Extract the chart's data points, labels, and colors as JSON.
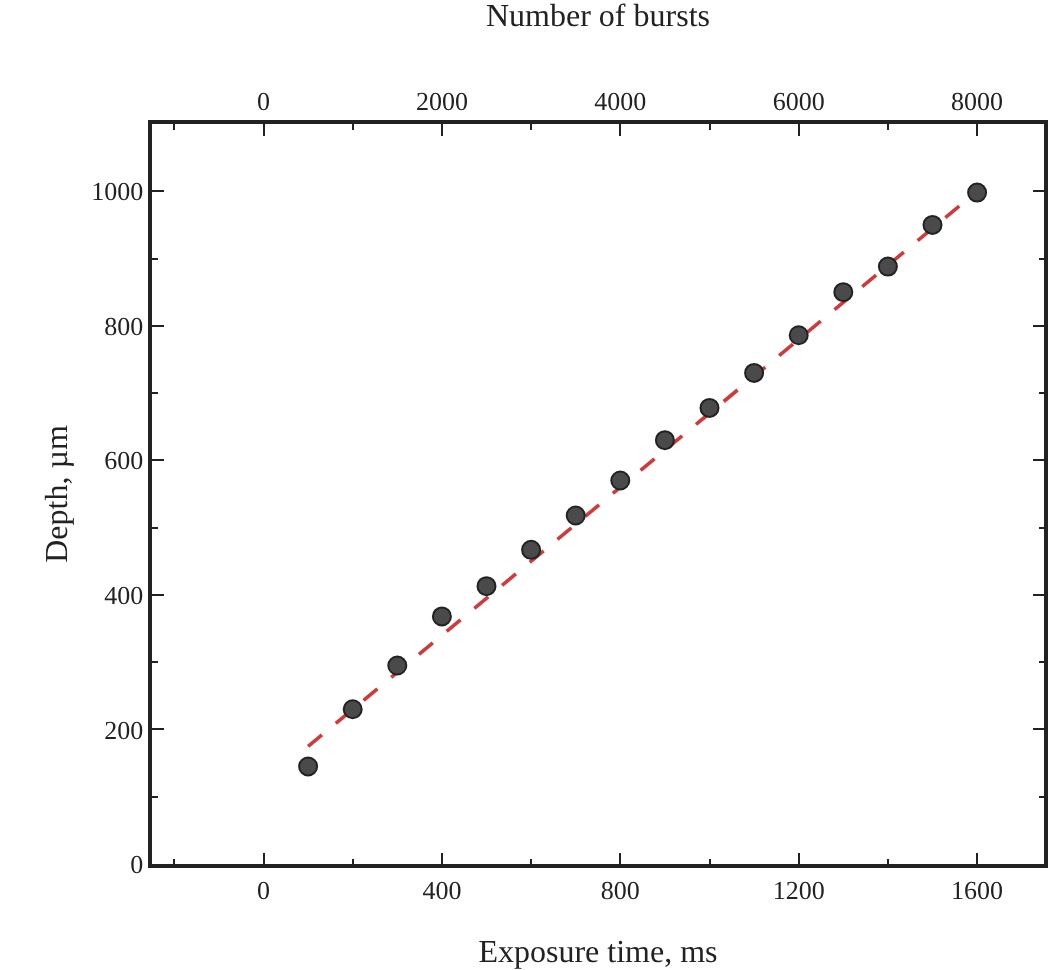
{
  "chart_data": {
    "type": "scatter",
    "xlabel": "Exposure time, ms",
    "ylabel": "Depth, µm",
    "x2label": "Number of bursts",
    "x": [
      100,
      200,
      300,
      400,
      500,
      600,
      700,
      800,
      900,
      1000,
      1100,
      1200,
      1300,
      1400,
      1500,
      1600
    ],
    "series": [
      {
        "color": "#4a4a4a",
        "marker": "circle",
        "values": [
          145,
          230,
          295,
          368,
          413,
          467,
          518,
          570,
          630,
          678,
          730,
          786,
          850,
          888,
          950,
          998
        ]
      },
      {
        "type": "line",
        "color": "#d03a3a",
        "line_style": "dashed",
        "marker": "none",
        "x": [
          100,
          1600
        ],
        "values": [
          175,
          1000
        ]
      }
    ],
    "xlim": [
      -250,
      1750
    ],
    "xticks": [
      0,
      400,
      800,
      1200,
      1600
    ],
    "x2lim": [
      -1250,
      8750
    ],
    "x2ticks": [
      0,
      2000,
      4000,
      6000,
      8000
    ],
    "ylim": [
      0,
      1100
    ],
    "yticks": [
      0,
      200,
      400,
      600,
      800,
      1000
    ],
    "grid": false
  }
}
